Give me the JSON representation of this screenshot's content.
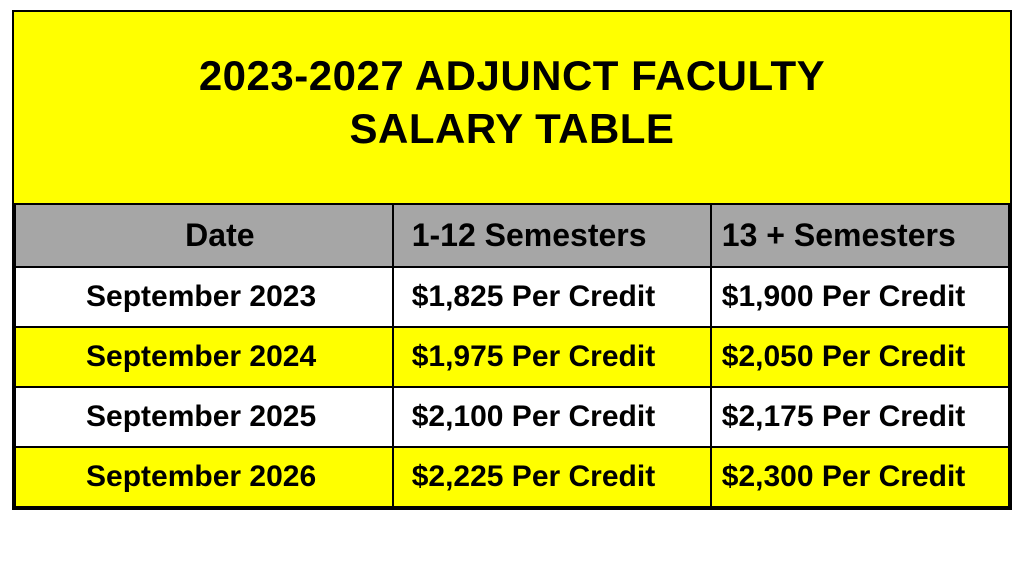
{
  "title_line1": "2023-2027 ADJUNCT FACULTY",
  "title_line2": "SALARY TABLE",
  "colors": {
    "yellow": "#ffff00",
    "header_gray": "#a6a6a6",
    "white": "#ffffff",
    "black": "#000000"
  },
  "table": {
    "columns": [
      "Date",
      "1-12 Semesters",
      "13 + Semesters"
    ],
    "rows": [
      {
        "date": "September 2023",
        "tier1": "$1,825 Per Credit",
        "tier2": "$1,900 Per Credit",
        "bg": "#ffffff"
      },
      {
        "date": "September 2024",
        "tier1": "$1,975 Per Credit",
        "tier2": "$2,050 Per Credit",
        "bg": "#ffff00"
      },
      {
        "date": "September 2025",
        "tier1": "$2,100 Per Credit",
        "tier2": "$2,175 Per Credit",
        "bg": "#ffffff"
      },
      {
        "date": "September 2026",
        "tier1": "$2,225 Per Credit",
        "tier2": "$2,300 Per Credit",
        "bg": "#ffff00"
      }
    ]
  }
}
